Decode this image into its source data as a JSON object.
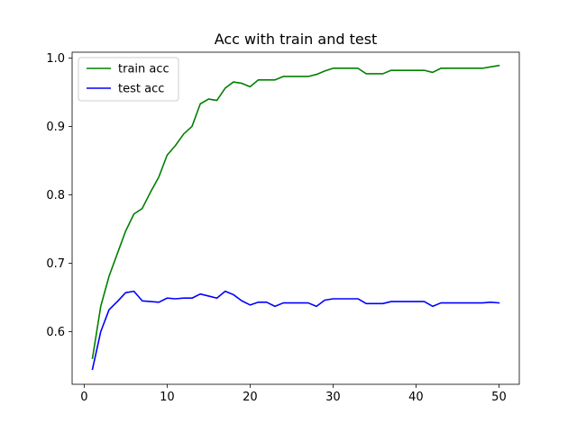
{
  "chart_data": {
    "type": "line",
    "title": "Acc with train and test",
    "xlabel": "",
    "ylabel": "",
    "xlim": [
      -1.45,
      52.45
    ],
    "ylim": [
      0.523,
      1.0085
    ],
    "x_ticks": [
      0,
      10,
      20,
      30,
      40,
      50
    ],
    "y_ticks": [
      0.6,
      0.7,
      0.8,
      0.9,
      1.0
    ],
    "x_tick_labels": [
      "0",
      "10",
      "20",
      "30",
      "40",
      "50"
    ],
    "y_tick_labels": [
      "0.6",
      "0.7",
      "0.8",
      "0.9",
      "1.0"
    ],
    "grid": false,
    "legend_position": "upper left",
    "x": [
      1,
      2,
      3,
      4,
      5,
      6,
      7,
      8,
      9,
      10,
      11,
      12,
      13,
      14,
      15,
      16,
      17,
      18,
      19,
      20,
      21,
      22,
      23,
      24,
      25,
      26,
      27,
      28,
      29,
      30,
      31,
      32,
      33,
      34,
      35,
      36,
      37,
      38,
      39,
      40,
      41,
      42,
      43,
      44,
      45,
      46,
      47,
      48,
      49,
      50
    ],
    "series": [
      {
        "name": "train acc",
        "color": "#008000",
        "values": [
          0.561,
          0.637,
          0.681,
          0.714,
          0.747,
          0.772,
          0.78,
          0.804,
          0.826,
          0.858,
          0.872,
          0.889,
          0.9,
          0.933,
          0.94,
          0.938,
          0.956,
          0.965,
          0.963,
          0.958,
          0.968,
          0.968,
          0.968,
          0.973,
          0.973,
          0.973,
          0.973,
          0.976,
          0.981,
          0.985,
          0.985,
          0.985,
          0.985,
          0.977,
          0.977,
          0.977,
          0.982,
          0.982,
          0.982,
          0.982,
          0.982,
          0.979,
          0.985,
          0.985,
          0.985,
          0.985,
          0.985,
          0.985,
          0.987,
          0.989
        ]
      },
      {
        "name": "test acc",
        "color": "#0000ff",
        "values": [
          0.545,
          0.6,
          0.632,
          0.644,
          0.657,
          0.659,
          0.645,
          0.644,
          0.643,
          0.649,
          0.648,
          0.649,
          0.649,
          0.655,
          0.652,
          0.649,
          0.659,
          0.654,
          0.645,
          0.639,
          0.643,
          0.643,
          0.637,
          0.642,
          0.642,
          0.642,
          0.642,
          0.637,
          0.646,
          0.648,
          0.648,
          0.648,
          0.648,
          0.641,
          0.641,
          0.641,
          0.644,
          0.644,
          0.644,
          0.644,
          0.644,
          0.637,
          0.642,
          0.642,
          0.642,
          0.642,
          0.642,
          0.642,
          0.643,
          0.642
        ]
      }
    ]
  }
}
